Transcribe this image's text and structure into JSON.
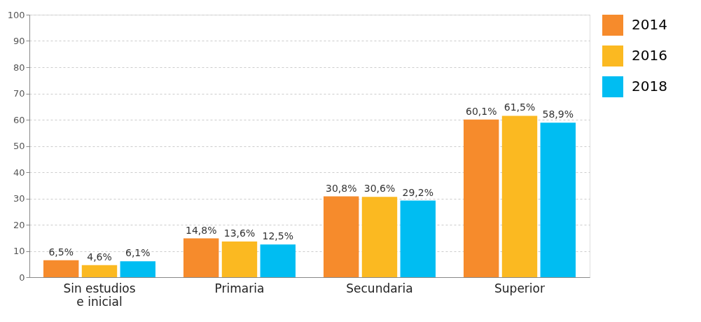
{
  "chart_data": {
    "type": "bar",
    "categories": [
      "Sin estudios e inicial",
      "Primaria",
      "Secundaria",
      "Superior"
    ],
    "series": [
      {
        "name": "2014",
        "color": "#f68b2c",
        "values": [
          6.5,
          14.8,
          30.8,
          60.1
        ],
        "value_labels": [
          "6,5%",
          "14,8%",
          "30,8%",
          "60,1%"
        ]
      },
      {
        "name": "2016",
        "color": "#fbb921",
        "values": [
          4.6,
          13.6,
          30.6,
          61.5
        ],
        "value_labels": [
          "4,6%",
          "13,6%",
          "30,6%",
          "61,5%"
        ]
      },
      {
        "name": "2018",
        "color": "#00bdf2",
        "values": [
          6.1,
          12.5,
          29.2,
          58.9
        ],
        "value_labels": [
          "6,1%",
          "12,5%",
          "29,2%",
          "58,9%"
        ]
      }
    ],
    "ylim": [
      0,
      100
    ],
    "yticks": [
      0,
      10,
      20,
      30,
      40,
      50,
      60,
      70,
      80,
      90,
      100
    ],
    "grid": "y",
    "legend": "right"
  }
}
